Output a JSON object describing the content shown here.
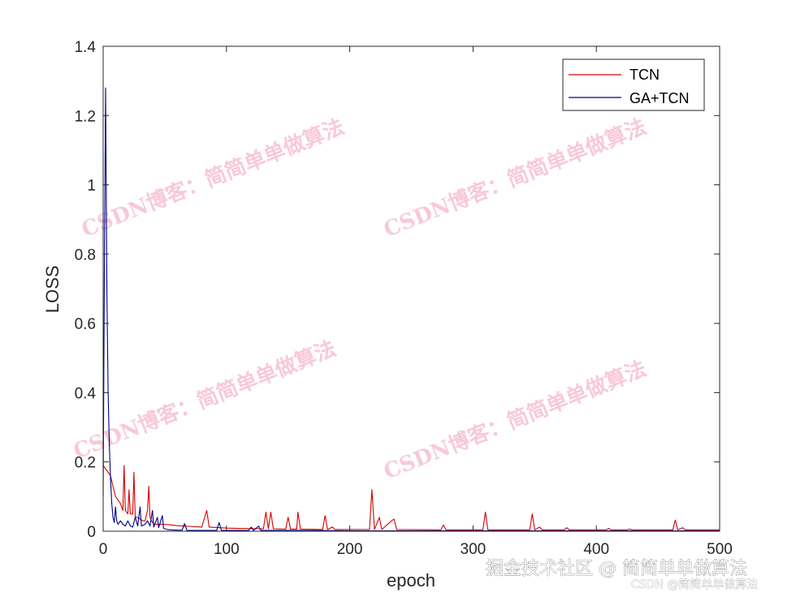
{
  "chart_data": {
    "type": "line",
    "xlabel": "epoch",
    "ylabel": "LOSS",
    "xlim": [
      0,
      500
    ],
    "ylim": [
      0,
      1.4
    ],
    "xticks": [
      "0",
      "100",
      "200",
      "300",
      "400",
      "500"
    ],
    "yticks": [
      "0",
      "0.2",
      "0.4",
      "0.6",
      "0.8",
      "1",
      "1.2",
      "1.4"
    ],
    "grid": false,
    "legend_position": "top-right",
    "series": [
      {
        "name": "TCN",
        "color": "#d40000",
        "points": [
          [
            0,
            0.19
          ],
          [
            2,
            0.18
          ],
          [
            4,
            0.17
          ],
          [
            6,
            0.16
          ],
          [
            8,
            0.13
          ],
          [
            10,
            0.1
          ],
          [
            12,
            0.09
          ],
          [
            14,
            0.08
          ],
          [
            16,
            0.06
          ],
          [
            17,
            0.19
          ],
          [
            18,
            0.06
          ],
          [
            20,
            0.05
          ],
          [
            21,
            0.12
          ],
          [
            22,
            0.05
          ],
          [
            24,
            0.05
          ],
          [
            25,
            0.17
          ],
          [
            26,
            0.04
          ],
          [
            28,
            0.04
          ],
          [
            30,
            0.035
          ],
          [
            32,
            0.03
          ],
          [
            34,
            0.03
          ],
          [
            36,
            0.06
          ],
          [
            37,
            0.13
          ],
          [
            38,
            0.04
          ],
          [
            40,
            0.025
          ],
          [
            42,
            0.02
          ],
          [
            45,
            0.02
          ],
          [
            50,
            0.02
          ],
          [
            55,
            0.018
          ],
          [
            60,
            0.016
          ],
          [
            70,
            0.014
          ],
          [
            80,
            0.012
          ],
          [
            84,
            0.06
          ],
          [
            86,
            0.012
          ],
          [
            95,
            0.01
          ],
          [
            100,
            0.009
          ],
          [
            110,
            0.008
          ],
          [
            130,
            0.007
          ],
          [
            132,
            0.055
          ],
          [
            134,
            0.007
          ],
          [
            136,
            0.055
          ],
          [
            138,
            0.007
          ],
          [
            148,
            0.006
          ],
          [
            150,
            0.04
          ],
          [
            152,
            0.006
          ],
          [
            157,
            0.006
          ],
          [
            158,
            0.055
          ],
          [
            160,
            0.006
          ],
          [
            178,
            0.005
          ],
          [
            180,
            0.045
          ],
          [
            182,
            0.005
          ],
          [
            186,
            0.012
          ],
          [
            188,
            0.005
          ],
          [
            200,
            0.005
          ],
          [
            216,
            0.005
          ],
          [
            218,
            0.12
          ],
          [
            220,
            0.005
          ],
          [
            224,
            0.04
          ],
          [
            226,
            0.005
          ],
          [
            234,
            0.03
          ],
          [
            236,
            0.035
          ],
          [
            238,
            0.005
          ],
          [
            274,
            0.004
          ],
          [
            276,
            0.018
          ],
          [
            278,
            0.004
          ],
          [
            300,
            0.004
          ],
          [
            308,
            0.004
          ],
          [
            310,
            0.055
          ],
          [
            312,
            0.004
          ],
          [
            346,
            0.004
          ],
          [
            348,
            0.05
          ],
          [
            350,
            0.004
          ],
          [
            354,
            0.012
          ],
          [
            356,
            0.004
          ],
          [
            374,
            0.004
          ],
          [
            376,
            0.01
          ],
          [
            378,
            0.004
          ],
          [
            408,
            0.004
          ],
          [
            410,
            0.008
          ],
          [
            412,
            0.004
          ],
          [
            425,
            0.004
          ],
          [
            427,
            0.006
          ],
          [
            429,
            0.004
          ],
          [
            462,
            0.004
          ],
          [
            464,
            0.032
          ],
          [
            466,
            0.004
          ],
          [
            470,
            0.01
          ],
          [
            472,
            0.004
          ],
          [
            500,
            0.004
          ]
        ]
      },
      {
        "name": "GA+TCN",
        "color": "#00008b",
        "points": [
          [
            0,
            0.1
          ],
          [
            1,
            0.75
          ],
          [
            2,
            1.28
          ],
          [
            3,
            0.7
          ],
          [
            4,
            0.4
          ],
          [
            5,
            0.25
          ],
          [
            6,
            0.15
          ],
          [
            7,
            0.08
          ],
          [
            8,
            0.04
          ],
          [
            9,
            0.025
          ],
          [
            10,
            0.07
          ],
          [
            11,
            0.03
          ],
          [
            12,
            0.02
          ],
          [
            14,
            0.03
          ],
          [
            16,
            0.02
          ],
          [
            18,
            0.015
          ],
          [
            20,
            0.03
          ],
          [
            22,
            0.015
          ],
          [
            24,
            0.012
          ],
          [
            26,
            0.04
          ],
          [
            28,
            0.015
          ],
          [
            30,
            0.07
          ],
          [
            31,
            0.015
          ],
          [
            34,
            0.02
          ],
          [
            36,
            0.03
          ],
          [
            38,
            0.015
          ],
          [
            40,
            0.06
          ],
          [
            41,
            0.012
          ],
          [
            44,
            0.04
          ],
          [
            45,
            0.01
          ],
          [
            48,
            0.045
          ],
          [
            49,
            0.008
          ],
          [
            52,
            0.005
          ],
          [
            55,
            0.004
          ],
          [
            60,
            0.003
          ],
          [
            64,
            0.003
          ],
          [
            66,
            0.022
          ],
          [
            68,
            0.002
          ],
          [
            80,
            0.002
          ],
          [
            92,
            0.002
          ],
          [
            94,
            0.025
          ],
          [
            96,
            0.002
          ],
          [
            100,
            0.002
          ],
          [
            118,
            0.002
          ],
          [
            120,
            0.012
          ],
          [
            122,
            0.002
          ],
          [
            126,
            0.015
          ],
          [
            128,
            0.002
          ],
          [
            140,
            0.002
          ],
          [
            170,
            0.002
          ],
          [
            200,
            0.001
          ],
          [
            300,
            0.001
          ],
          [
            400,
            0.001
          ],
          [
            500,
            0.001
          ]
        ]
      }
    ]
  },
  "watermark": {
    "text": "CSDN博客：简简单单做算法",
    "color": "#f08aa8"
  },
  "footer": {
    "line1": "掘金技术社区 @ 简简单单做算法",
    "line2": "CSDN @简简单单做算法"
  }
}
